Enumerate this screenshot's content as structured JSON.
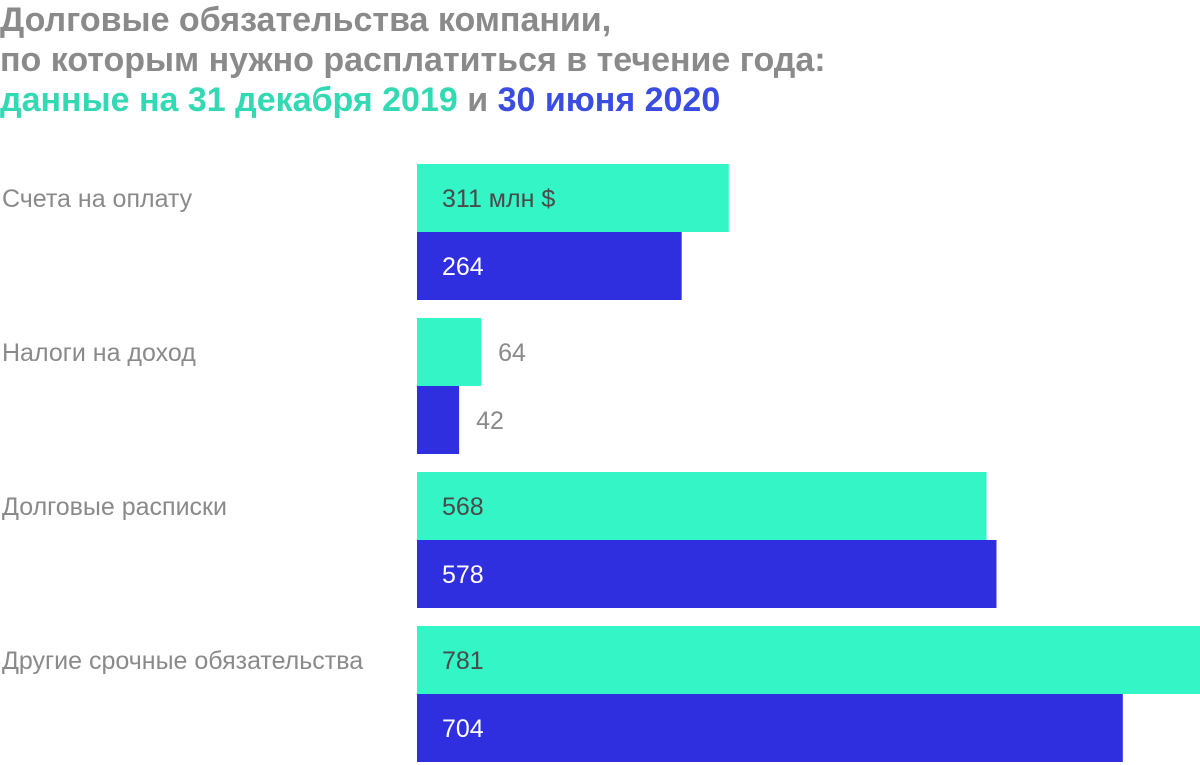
{
  "title": {
    "line1": "Долговые обязательства компании,",
    "line2": "по которым нужно расплатиться в течение года:",
    "line3_a": "данные на 31 декабря 2019",
    "line3_b": "и",
    "line3_c": "30 июня 2020"
  },
  "colors": {
    "series1": "#33f5c5",
    "series2": "#2f2fe0",
    "label_gray": "#8a8a8a",
    "title_green": "#33d9b2",
    "title_blue": "#3a4de0"
  },
  "chart_data": {
    "type": "bar",
    "orientation": "horizontal",
    "categories": [
      "Счета на оплату",
      "Налоги на доход",
      "Долговые расписки",
      "Другие срочные обязательства"
    ],
    "series": [
      {
        "name": "31 декабря 2019",
        "values": [
          311,
          64,
          568,
          781
        ]
      },
      {
        "name": "30 июня 2020",
        "values": [
          264,
          42,
          578,
          704
        ]
      }
    ],
    "value_labels": [
      [
        "311 млн $",
        "64",
        "568",
        "781"
      ],
      [
        "264",
        "42",
        "578",
        "704"
      ]
    ],
    "unit": "млн $",
    "xlim": [
      0,
      781
    ],
    "grid": false,
    "legend": "title"
  }
}
